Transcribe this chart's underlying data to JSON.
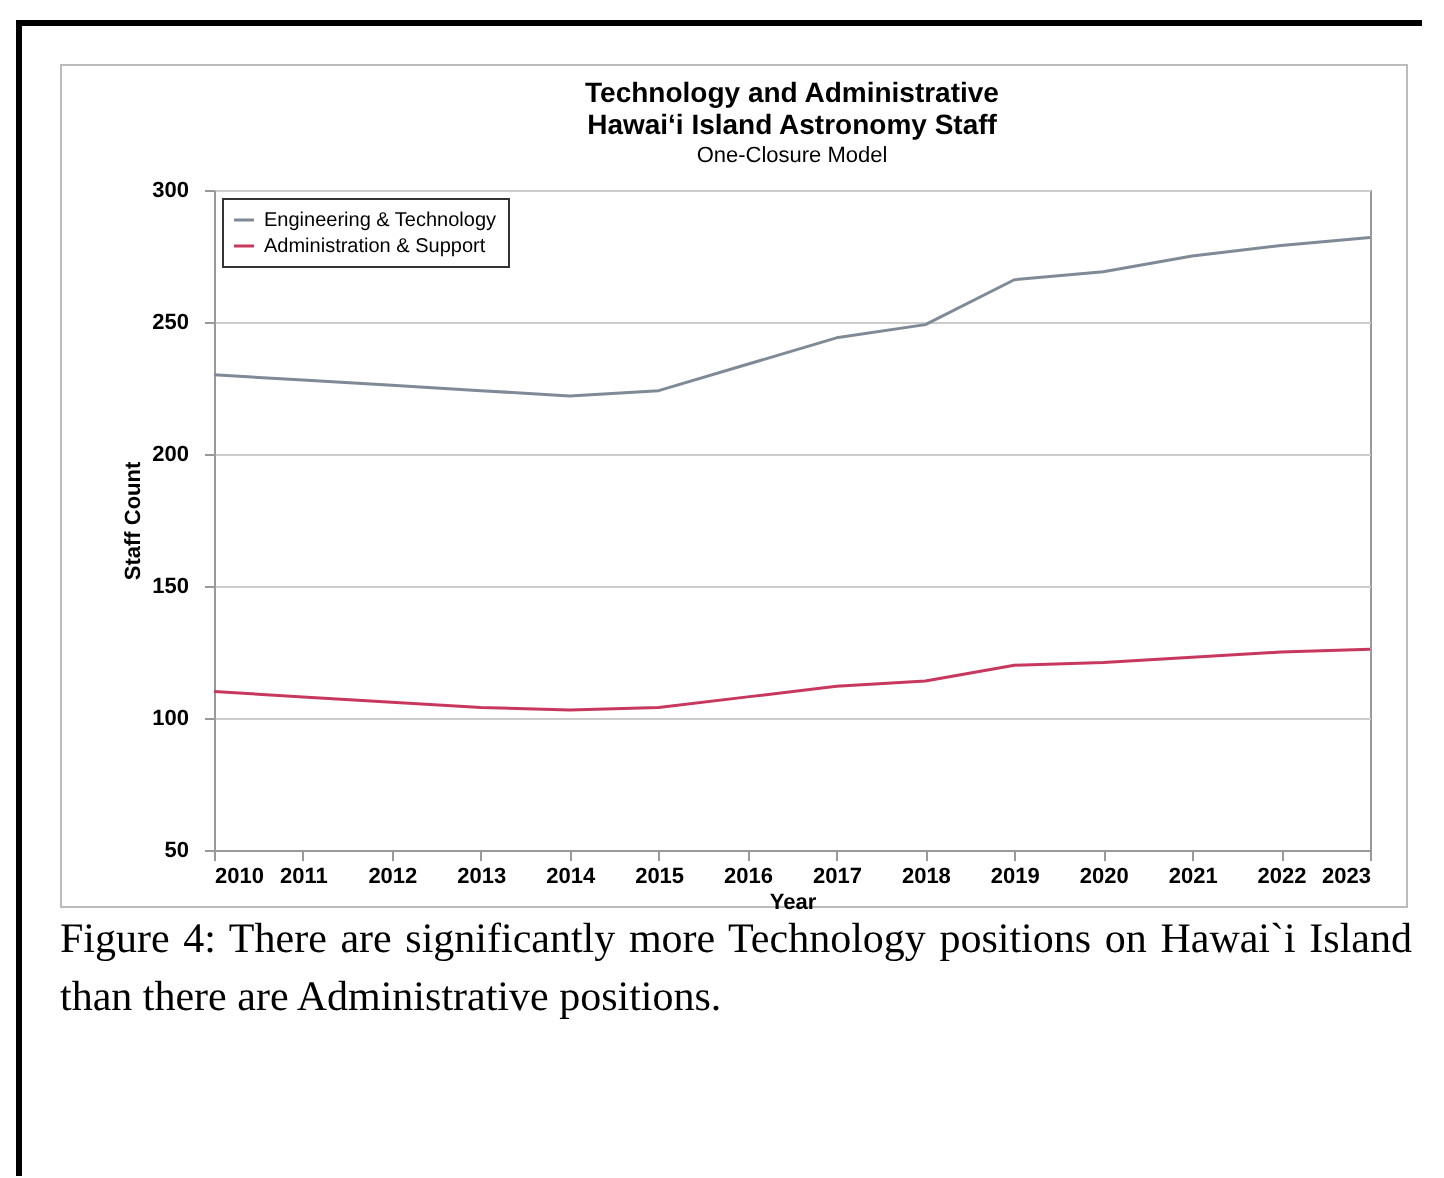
{
  "chart_data": {
    "type": "line",
    "title": "Technology and Administrative\nHawaiʻi Island Astronomy Staff",
    "subtitle": "One-Closure Model",
    "xlabel": "Year",
    "ylabel": "Staff Count",
    "categories": [
      "2010",
      "2011",
      "2012",
      "2013",
      "2014",
      "2015",
      "2016",
      "2017",
      "2018",
      "2019",
      "2020",
      "2021",
      "2022",
      "2023"
    ],
    "series": [
      {
        "name": "Engineering & Technology",
        "color": "#7f8a96",
        "values": [
          230,
          228,
          226,
          224,
          222,
          224,
          234,
          244,
          249,
          266,
          269,
          275,
          279,
          282
        ]
      },
      {
        "name": "Administration & Support",
        "color": "#c8385e",
        "values": [
          110,
          108,
          106,
          104,
          103,
          104,
          108,
          112,
          114,
          120,
          121,
          123,
          125,
          126
        ]
      }
    ],
    "ylim": [
      50,
      300
    ],
    "yticks": [
      50,
      100,
      150,
      200,
      250,
      300
    ],
    "grid": "y",
    "legend": "top left",
    "marker": "none",
    "line_style": "solid",
    "annotations": [
      "Figure 4: There are significantly more Technology positions on Hawai`i Island than there are Administrative positions."
    ]
  }
}
